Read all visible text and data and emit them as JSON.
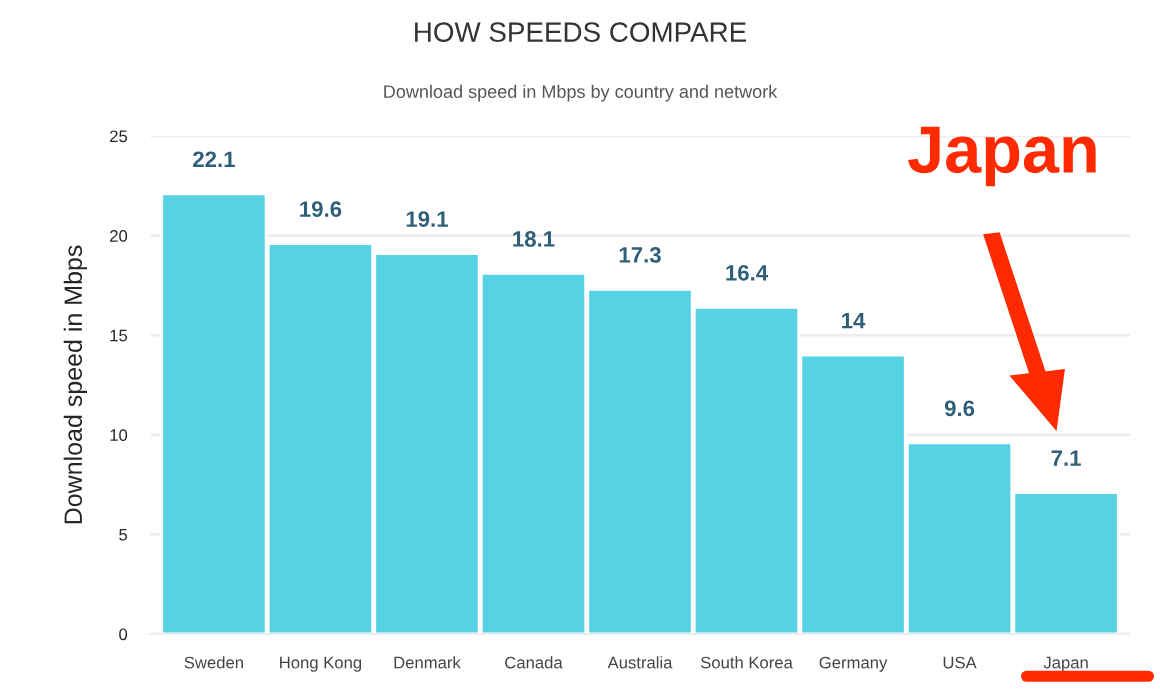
{
  "chart_data": {
    "type": "bar",
    "title": "HOW SPEEDS COMPARE",
    "subtitle": "Download speed in Mbps by country and network",
    "ylabel": "Download speed in Mbps",
    "categories": [
      "Sweden",
      "Hong Kong",
      "Denmark",
      "Canada",
      "Australia",
      "South Korea",
      "Germany",
      "USA",
      "Japan"
    ],
    "values": [
      22.1,
      19.6,
      19.1,
      18.1,
      17.3,
      16.4,
      14,
      9.6,
      7.1
    ],
    "color": "#56d2e4",
    "ylim": [
      0,
      25
    ],
    "yticks": [
      0,
      5,
      10,
      15,
      20,
      25
    ],
    "grid": "y",
    "data_labels": true,
    "annotations": [
      "Japan"
    ]
  }
}
